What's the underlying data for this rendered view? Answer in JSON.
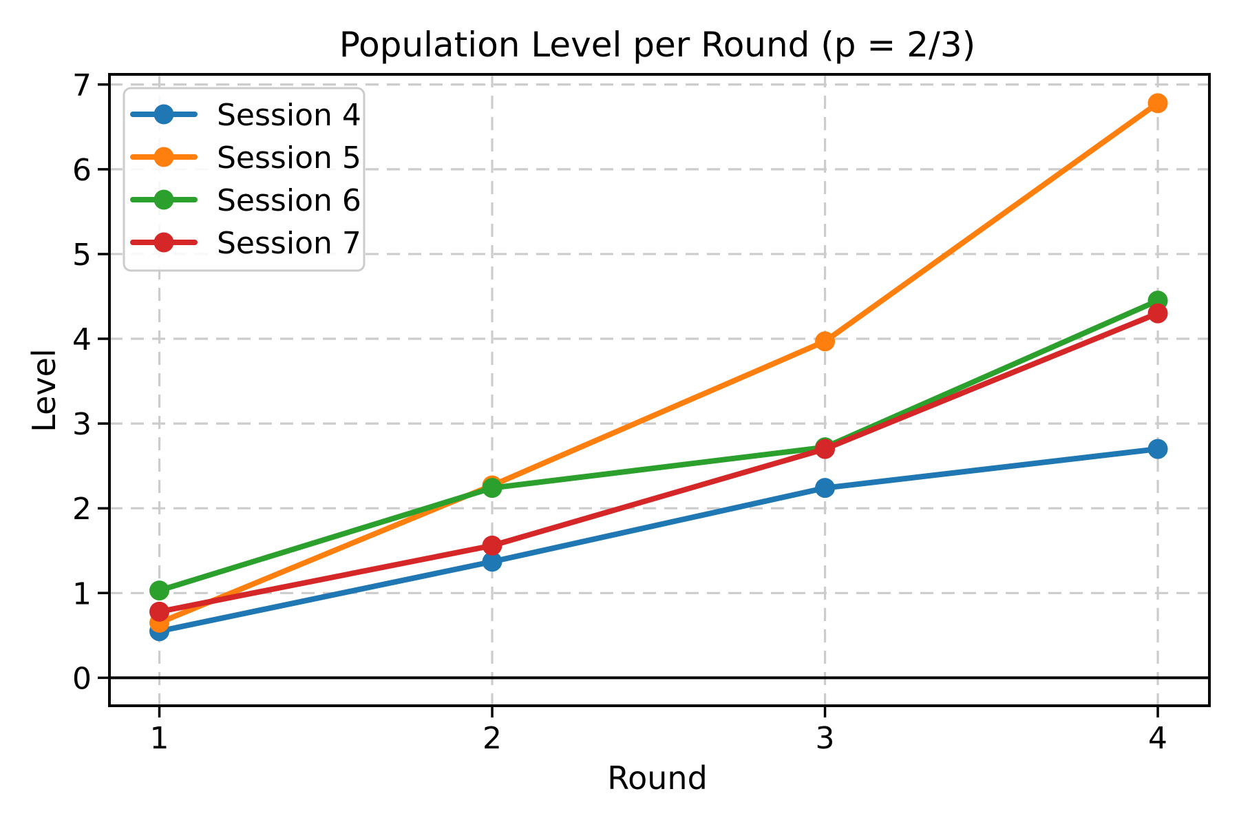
{
  "chart_data": {
    "type": "line",
    "title": "Population Level per Round (p = 2/3)",
    "xlabel": "Round",
    "ylabel": "Level",
    "x": [
      1,
      2,
      3,
      4
    ],
    "xtick_labels": [
      "1",
      "2",
      "3",
      "4"
    ],
    "ytick_values": [
      0,
      1,
      2,
      3,
      4,
      5,
      6,
      7
    ],
    "ytick_labels": [
      "0",
      "1",
      "2",
      "3",
      "4",
      "5",
      "6",
      "7"
    ],
    "xlim": [
      0.85,
      4.155
    ],
    "ylim": [
      -0.33,
      7.12
    ],
    "grid": true,
    "grid_style": "dashed",
    "zero_line": true,
    "legend_position": "upper-left",
    "series": [
      {
        "name": "Session 4",
        "color": "#1f77b4",
        "values": [
          0.55,
          1.37,
          2.24,
          2.7
        ]
      },
      {
        "name": "Session 5",
        "color": "#ff7f0e",
        "values": [
          0.65,
          2.27,
          3.97,
          6.78
        ]
      },
      {
        "name": "Session 6",
        "color": "#2ca02c",
        "values": [
          1.03,
          2.24,
          2.72,
          4.45
        ]
      },
      {
        "name": "Session 7",
        "color": "#d62728",
        "values": [
          0.78,
          1.56,
          2.7,
          4.3
        ]
      }
    ],
    "colors": {
      "grid": "#cccccc",
      "axis": "#000000",
      "background": "#ffffff",
      "legend_border": "#cccccc"
    }
  }
}
